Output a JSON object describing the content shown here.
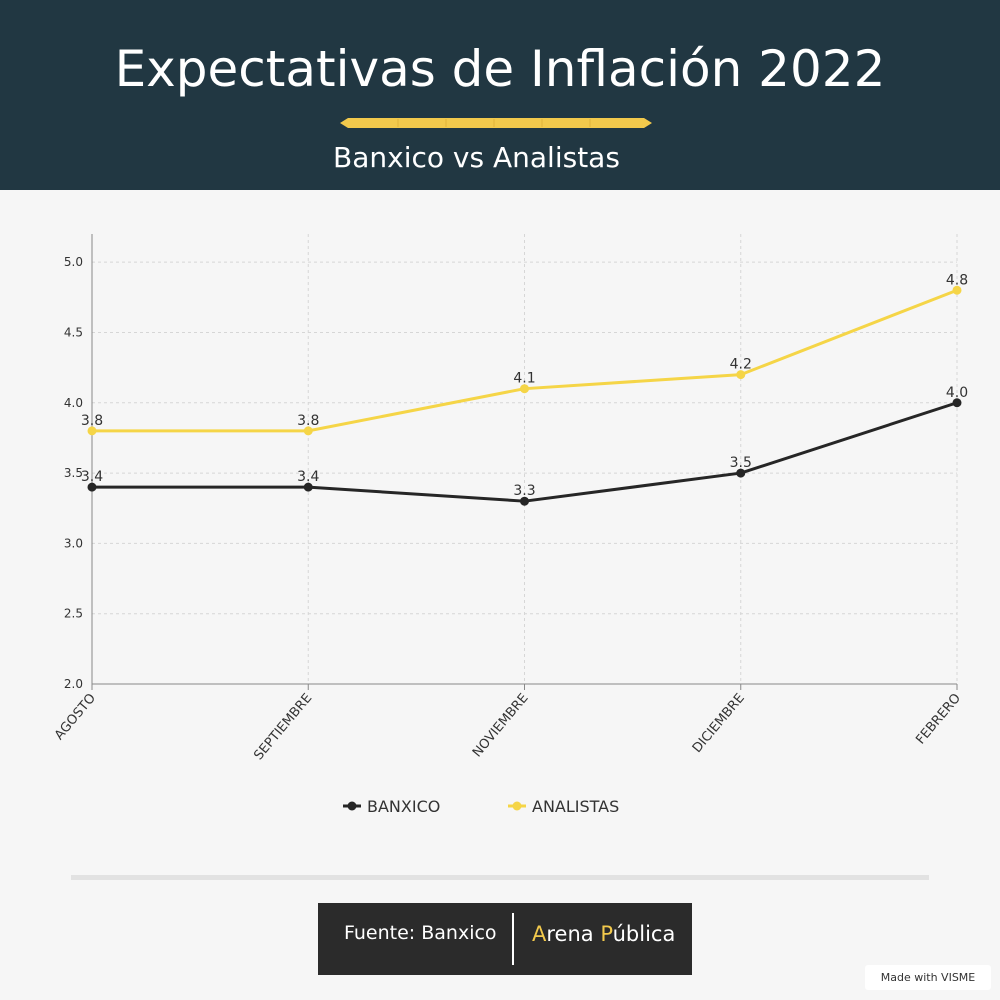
{
  "header": {
    "title": "Expectativas de Inflación 2022",
    "subtitle": "Banxico vs Analistas"
  },
  "chart_data": {
    "type": "line",
    "categories": [
      "AGOSTO",
      "SEPTIEMBRE",
      "NOVIEMBRE",
      "DICIEMBRE",
      "FEBRERO"
    ],
    "series": [
      {
        "name": "BANXICO",
        "values": [
          3.4,
          3.4,
          3.3,
          3.5,
          4.0
        ],
        "labels": [
          "3.4",
          "3.4",
          "3.3",
          "3.5",
          "4.0"
        ],
        "color": "#262626"
      },
      {
        "name": "ANALISTAS",
        "values": [
          3.8,
          3.8,
          4.1,
          4.2,
          4.8
        ],
        "labels": [
          "3.8",
          "3.8",
          "4.1",
          "4.2",
          "4.8"
        ],
        "color": "#f5d547"
      }
    ],
    "yticks": [
      "2.0",
      "2.5",
      "3.0",
      "3.5",
      "4.0",
      "4.5",
      "5.0"
    ],
    "ylim": [
      2.0,
      5.2
    ],
    "grid": true,
    "legend": "bottom",
    "title": "",
    "xlabel": "",
    "ylabel": ""
  },
  "footer": {
    "source_label": "Fuente: Banxico",
    "logo_first_letter": "A",
    "logo_part1": "rena ",
    "logo_second_letter": "P",
    "logo_part2": "ública",
    "watermark": "Made with VISME"
  },
  "colors": {
    "header_bg": "#213742",
    "accent": "#f5d547",
    "banxico": "#262626"
  }
}
